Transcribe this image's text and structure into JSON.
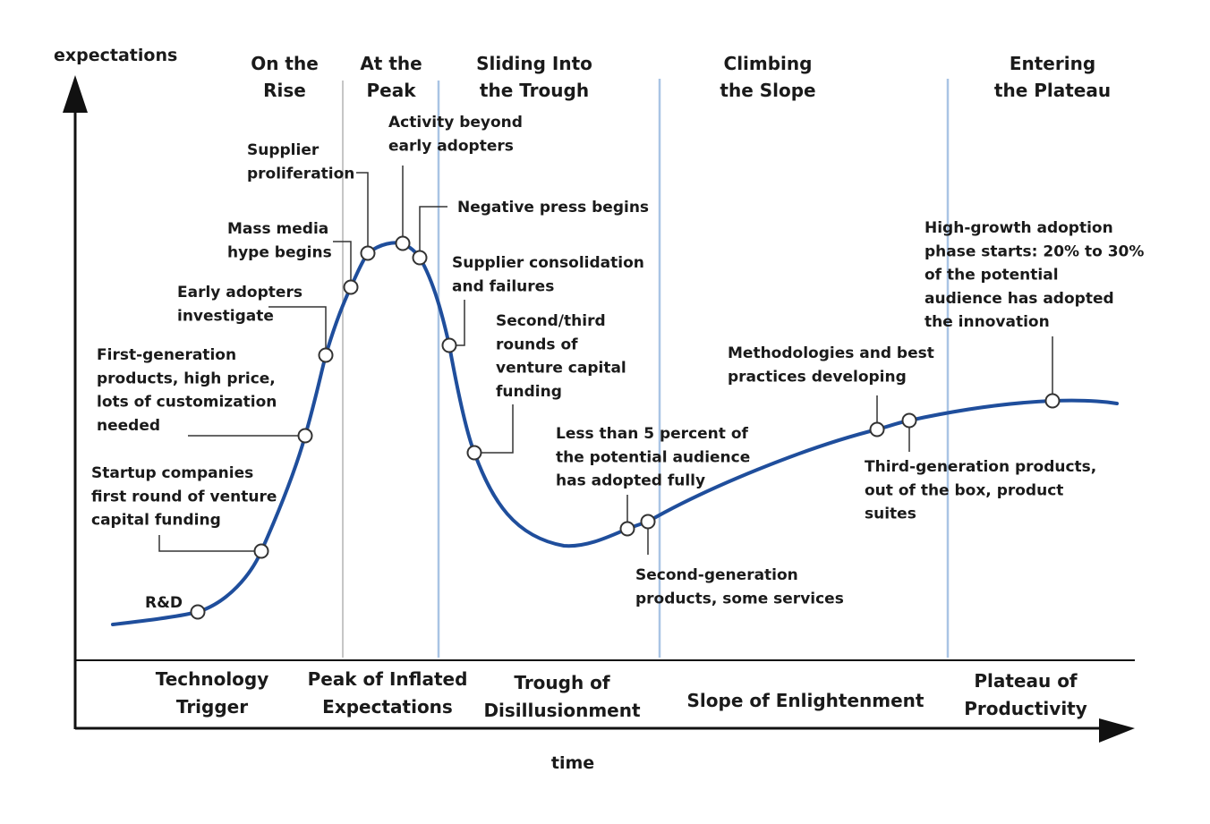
{
  "axes": {
    "y_label": "expectations",
    "x_label": "time"
  },
  "stage_headers": [
    [
      "On the",
      "Rise"
    ],
    [
      "At the",
      "Peak"
    ],
    [
      "Sliding Into",
      "the Trough"
    ],
    [
      "Climbing",
      "the Slope"
    ],
    [
      "Entering",
      "the Plateau"
    ]
  ],
  "phases": [
    [
      "Technology",
      "Trigger"
    ],
    [
      "Peak of Inflated",
      "Expectations"
    ],
    [
      "Trough of",
      "Disillusionment"
    ],
    [
      "Slope of Enlightenment"
    ],
    [
      "Plateau of",
      "Productivity"
    ]
  ],
  "annotations": [
    [
      "R&D"
    ],
    [
      "Startup companies",
      "first round of venture",
      "capital funding"
    ],
    [
      "First-generation",
      "products, high price,",
      "lots of customization",
      "needed"
    ],
    [
      "Early adopters",
      "investigate"
    ],
    [
      "Mass media",
      "hype begins"
    ],
    [
      "Supplier",
      "proliferation"
    ],
    [
      "Activity beyond",
      "early adopters"
    ],
    [
      "Negative press begins"
    ],
    [
      "Supplier consolidation",
      "and failures"
    ],
    [
      "Second/third",
      "rounds of",
      "venture capital",
      "funding"
    ],
    [
      "Less than 5 percent of",
      "the potential audience",
      "has adopted fully"
    ],
    [
      "Second-generation",
      "products, some services"
    ],
    [
      "Methodologies and best",
      "practices developing"
    ],
    [
      "Third-generation products,",
      "out of the box, product",
      "suites"
    ],
    [
      "High-growth adoption",
      "phase starts: 20% to 30%",
      "of the potential",
      "audience has adopted",
      "the innovation"
    ]
  ],
  "colors": {
    "curve": "#1f4e9c",
    "divider_gray": "#b4b4b4",
    "divider_blue": "#a9c4e4",
    "axis": "#111111",
    "leader": "#333333"
  }
}
